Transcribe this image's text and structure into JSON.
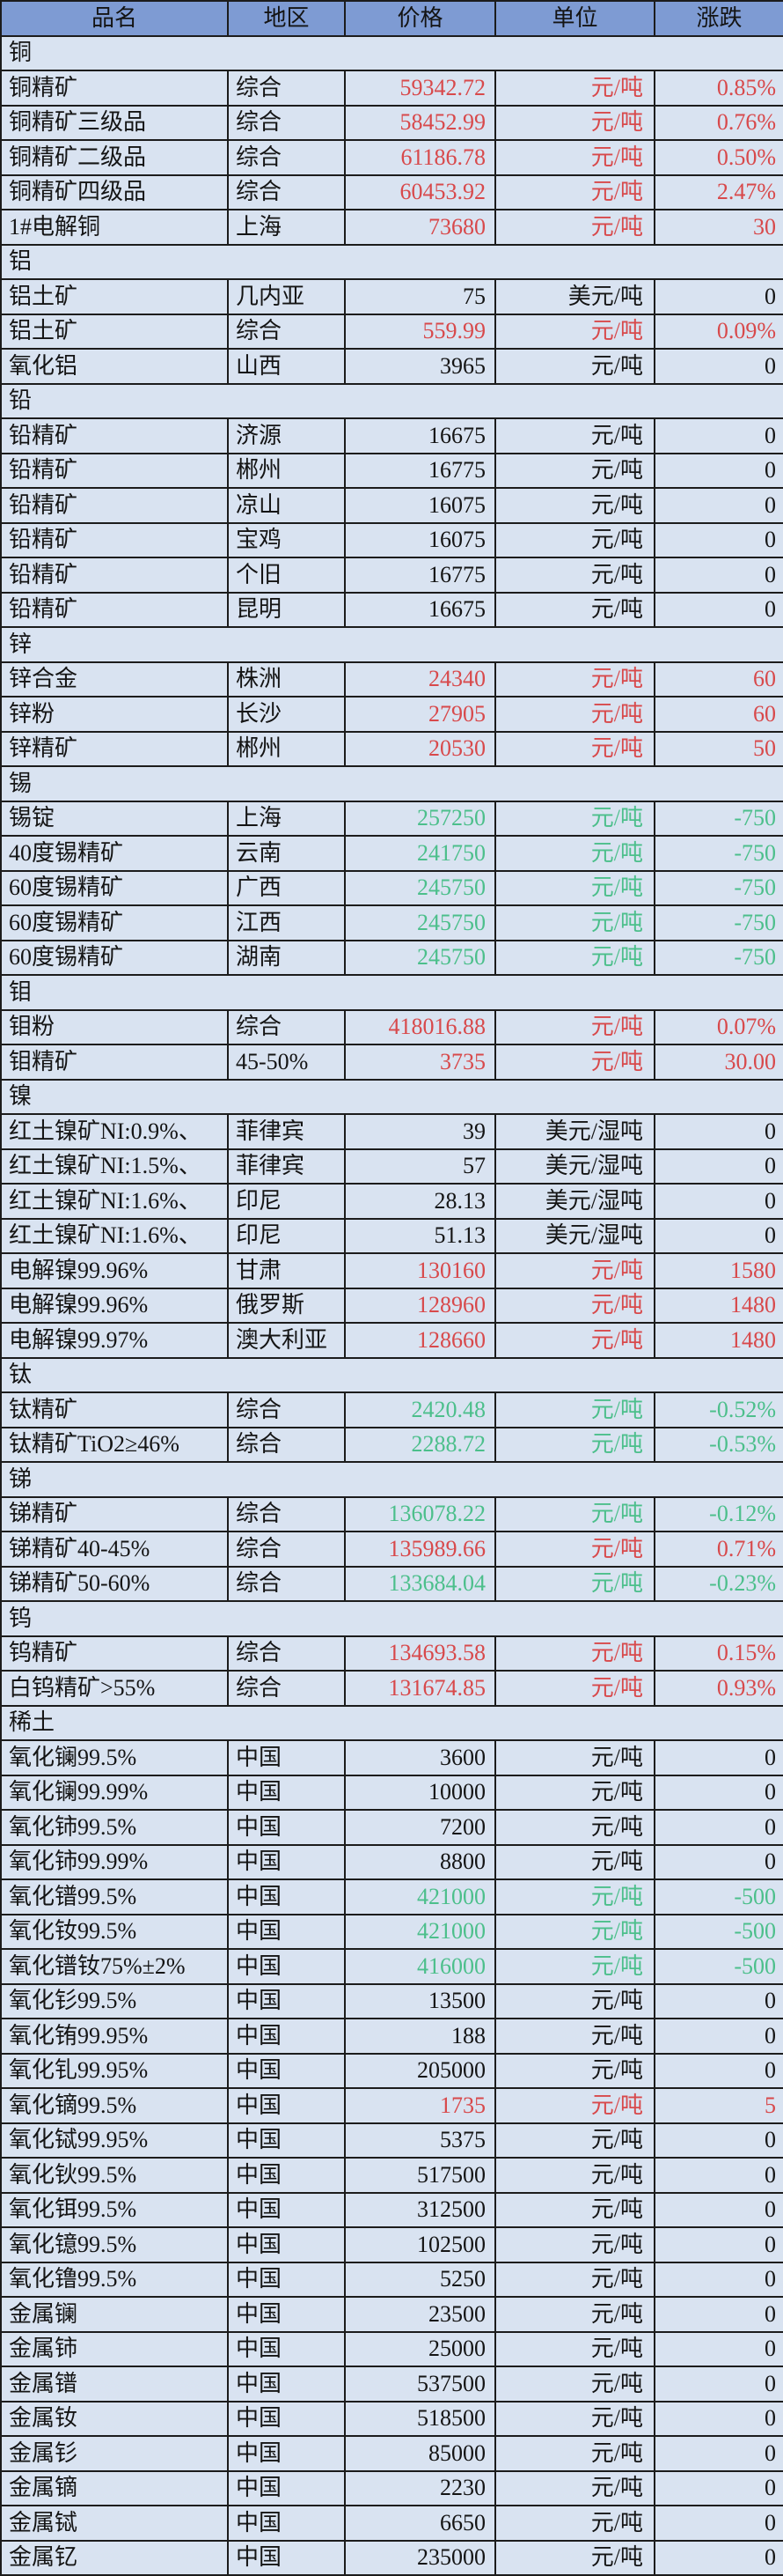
{
  "chart_data": {
    "type": "table",
    "columns": [
      "品名",
      "地区",
      "价格",
      "单位",
      "涨跌"
    ],
    "palette": {
      "header_bg": "#7e9bd3",
      "row_bg": "#d9e3f1",
      "border": "#1c1c1c",
      "up": "#d8494b",
      "down": "#4cbf8b",
      "flat": "#141414"
    },
    "sections": [
      {
        "label": "铜",
        "rows": [
          {
            "name": "铜精矿",
            "region": "综合",
            "price": "59342.72",
            "unit": "元/吨",
            "change": "0.85%",
            "trend": "up"
          },
          {
            "name": "铜精矿三级品",
            "region": "综合",
            "price": "58452.99",
            "unit": "元/吨",
            "change": "0.76%",
            "trend": "up"
          },
          {
            "name": "铜精矿二级品",
            "region": "综合",
            "price": "61186.78",
            "unit": "元/吨",
            "change": "0.50%",
            "trend": "up"
          },
          {
            "name": "铜精矿四级品",
            "region": "综合",
            "price": "60453.92",
            "unit": "元/吨",
            "change": "2.47%",
            "trend": "up"
          },
          {
            "name": "1#电解铜",
            "region": "上海",
            "price": "73680",
            "unit": "元/吨",
            "change": "30",
            "trend": "up"
          }
        ]
      },
      {
        "label": "铝",
        "rows": [
          {
            "name": "铝土矿",
            "region": "几内亚",
            "price": "75",
            "unit": "美元/吨",
            "change": "0",
            "trend": "flat"
          },
          {
            "name": "铝土矿",
            "region": "综合",
            "price": "559.99",
            "unit": "元/吨",
            "change": "0.09%",
            "trend": "up"
          },
          {
            "name": "氧化铝",
            "region": "山西",
            "price": "3965",
            "unit": "元/吨",
            "change": "0",
            "trend": "flat"
          }
        ]
      },
      {
        "label": "铅",
        "rows": [
          {
            "name": "铅精矿",
            "region": "济源",
            "price": "16675",
            "unit": "元/吨",
            "change": "0",
            "trend": "flat"
          },
          {
            "name": "铅精矿",
            "region": "郴州",
            "price": "16775",
            "unit": "元/吨",
            "change": "0",
            "trend": "flat"
          },
          {
            "name": "铅精矿",
            "region": "凉山",
            "price": "16075",
            "unit": "元/吨",
            "change": "0",
            "trend": "flat"
          },
          {
            "name": "铅精矿",
            "region": "宝鸡",
            "price": "16075",
            "unit": "元/吨",
            "change": "0",
            "trend": "flat"
          },
          {
            "name": "铅精矿",
            "region": "个旧",
            "price": "16775",
            "unit": "元/吨",
            "change": "0",
            "trend": "flat"
          },
          {
            "name": "铅精矿",
            "region": "昆明",
            "price": "16675",
            "unit": "元/吨",
            "change": "0",
            "trend": "flat"
          }
        ]
      },
      {
        "label": "锌",
        "rows": [
          {
            "name": "锌合金",
            "region": "株洲",
            "price": "24340",
            "unit": "元/吨",
            "change": "60",
            "trend": "up"
          },
          {
            "name": "锌粉",
            "region": "长沙",
            "price": "27905",
            "unit": "元/吨",
            "change": "60",
            "trend": "up"
          },
          {
            "name": "锌精矿",
            "region": "郴州",
            "price": "20530",
            "unit": "元/吨",
            "change": "50",
            "trend": "up"
          }
        ]
      },
      {
        "label": "锡",
        "rows": [
          {
            "name": "锡锭",
            "region": "上海",
            "price": "257250",
            "unit": "元/吨",
            "change": "-750",
            "trend": "down"
          },
          {
            "name": "40度锡精矿",
            "region": "云南",
            "price": "241750",
            "unit": "元/吨",
            "change": "-750",
            "trend": "down"
          },
          {
            "name": "60度锡精矿",
            "region": "广西",
            "price": "245750",
            "unit": "元/吨",
            "change": "-750",
            "trend": "down"
          },
          {
            "name": "60度锡精矿",
            "region": "江西",
            "price": "245750",
            "unit": "元/吨",
            "change": "-750",
            "trend": "down"
          },
          {
            "name": "60度锡精矿",
            "region": "湖南",
            "price": "245750",
            "unit": "元/吨",
            "change": "-750",
            "trend": "down"
          }
        ]
      },
      {
        "label": "钼",
        "rows": [
          {
            "name": "钼粉",
            "region": "综合",
            "price": "418016.88",
            "unit": "元/吨",
            "change": "0.07%",
            "trend": "up"
          },
          {
            "name": "钼精矿",
            "region": "45-50%",
            "price": "3735",
            "unit": "元/吨",
            "change": "30.00",
            "trend": "up"
          }
        ]
      },
      {
        "label": "镍",
        "rows": [
          {
            "name": "红土镍矿NI:0.9%、",
            "region": "菲律宾",
            "price": "39",
            "unit": "美元/湿吨",
            "change": "0",
            "trend": "flat"
          },
          {
            "name": "红土镍矿NI:1.5%、",
            "region": "菲律宾",
            "price": "57",
            "unit": "美元/湿吨",
            "change": "0",
            "trend": "flat"
          },
          {
            "name": "红土镍矿NI:1.6%、",
            "region": "印尼",
            "price": "28.13",
            "unit": "美元/湿吨",
            "change": "0",
            "trend": "flat"
          },
          {
            "name": "红土镍矿NI:1.6%、",
            "region": "印尼",
            "price": "51.13",
            "unit": "美元/湿吨",
            "change": "0",
            "trend": "flat"
          },
          {
            "name": "电解镍99.96%",
            "region": "甘肃",
            "price": "130160",
            "unit": "元/吨",
            "change": "1580",
            "trend": "up"
          },
          {
            "name": "电解镍99.96%",
            "region": "俄罗斯",
            "price": "128960",
            "unit": "元/吨",
            "change": "1480",
            "trend": "up"
          },
          {
            "name": "电解镍99.97%",
            "region": "澳大利亚",
            "price": "128660",
            "unit": "元/吨",
            "change": "1480",
            "trend": "up"
          }
        ]
      },
      {
        "label": "钛",
        "rows": [
          {
            "name": "钛精矿",
            "region": "综合",
            "price": "2420.48",
            "unit": "元/吨",
            "change": "-0.52%",
            "trend": "down"
          },
          {
            "name": "钛精矿TiO2≥46%",
            "region": "综合",
            "price": "2288.72",
            "unit": "元/吨",
            "change": "-0.53%",
            "trend": "down"
          }
        ]
      },
      {
        "label": "锑",
        "rows": [
          {
            "name": "锑精矿",
            "region": "综合",
            "price": "136078.22",
            "unit": "元/吨",
            "change": "-0.12%",
            "trend": "down"
          },
          {
            "name": "锑精矿40-45%",
            "region": "综合",
            "price": "135989.66",
            "unit": "元/吨",
            "change": "0.71%",
            "trend": "up"
          },
          {
            "name": "锑精矿50-60%",
            "region": "综合",
            "price": "133684.04",
            "unit": "元/吨",
            "change": "-0.23%",
            "trend": "down"
          }
        ]
      },
      {
        "label": "钨",
        "rows": [
          {
            "name": "钨精矿",
            "region": "综合",
            "price": "134693.58",
            "unit": "元/吨",
            "change": "0.15%",
            "trend": "up"
          },
          {
            "name": "白钨精矿>55%",
            "region": "综合",
            "price": "131674.85",
            "unit": "元/吨",
            "change": "0.93%",
            "trend": "up"
          }
        ]
      },
      {
        "label": "稀土",
        "rows": [
          {
            "name": "氧化镧99.5%",
            "region": "中国",
            "price": "3600",
            "unit": "元/吨",
            "change": "0",
            "trend": "flat"
          },
          {
            "name": "氧化镧99.99%",
            "region": "中国",
            "price": "10000",
            "unit": "元/吨",
            "change": "0",
            "trend": "flat"
          },
          {
            "name": "氧化铈99.5%",
            "region": "中国",
            "price": "7200",
            "unit": "元/吨",
            "change": "0",
            "trend": "flat"
          },
          {
            "name": "氧化铈99.99%",
            "region": "中国",
            "price": "8800",
            "unit": "元/吨",
            "change": "0",
            "trend": "flat"
          },
          {
            "name": "氧化镨99.5%",
            "region": "中国",
            "price": "421000",
            "unit": "元/吨",
            "change": "-500",
            "trend": "down"
          },
          {
            "name": "氧化钕99.5%",
            "region": "中国",
            "price": "421000",
            "unit": "元/吨",
            "change": "-500",
            "trend": "down"
          },
          {
            "name": "氧化镨钕75%±2%",
            "region": "中国",
            "price": "416000",
            "unit": "元/吨",
            "change": "-500",
            "trend": "down"
          },
          {
            "name": "氧化钐99.5%",
            "region": "中国",
            "price": "13500",
            "unit": "元/吨",
            "change": "0",
            "trend": "flat"
          },
          {
            "name": "氧化铕99.95%",
            "region": "中国",
            "price": "188",
            "unit": "元/吨",
            "change": "0",
            "trend": "flat"
          },
          {
            "name": "氧化钆99.95%",
            "region": "中国",
            "price": "205000",
            "unit": "元/吨",
            "change": "0",
            "trend": "flat"
          },
          {
            "name": "氧化镝99.5%",
            "region": "中国",
            "price": "1735",
            "unit": "元/吨",
            "change": "5",
            "trend": "up"
          },
          {
            "name": "氧化铽99.95%",
            "region": "中国",
            "price": "5375",
            "unit": "元/吨",
            "change": "0",
            "trend": "flat"
          },
          {
            "name": "氧化钬99.5%",
            "region": "中国",
            "price": "517500",
            "unit": "元/吨",
            "change": "0",
            "trend": "flat"
          },
          {
            "name": "氧化铒99.5%",
            "region": "中国",
            "price": "312500",
            "unit": "元/吨",
            "change": "0",
            "trend": "flat"
          },
          {
            "name": "氧化镱99.5%",
            "region": "中国",
            "price": "102500",
            "unit": "元/吨",
            "change": "0",
            "trend": "flat"
          },
          {
            "name": "氧化镥99.5%",
            "region": "中国",
            "price": "5250",
            "unit": "元/吨",
            "change": "0",
            "trend": "flat"
          },
          {
            "name": "金属镧",
            "region": "中国",
            "price": "23500",
            "unit": "元/吨",
            "change": "0",
            "trend": "flat"
          },
          {
            "name": "金属铈",
            "region": "中国",
            "price": "25000",
            "unit": "元/吨",
            "change": "0",
            "trend": "flat"
          },
          {
            "name": "金属镨",
            "region": "中国",
            "price": "537500",
            "unit": "元/吨",
            "change": "0",
            "trend": "flat"
          },
          {
            "name": "金属钕",
            "region": "中国",
            "price": "518500",
            "unit": "元/吨",
            "change": "0",
            "trend": "flat"
          },
          {
            "name": "金属钐",
            "region": "中国",
            "price": "85000",
            "unit": "元/吨",
            "change": "0",
            "trend": "flat"
          },
          {
            "name": "金属镝",
            "region": "中国",
            "price": "2230",
            "unit": "元/吨",
            "change": "0",
            "trend": "flat"
          },
          {
            "name": "金属铽",
            "region": "中国",
            "price": "6650",
            "unit": "元/吨",
            "change": "0",
            "trend": "flat"
          },
          {
            "name": "金属钇",
            "region": "中国",
            "price": "235000",
            "unit": "元/吨",
            "change": "0",
            "trend": "flat"
          }
        ]
      }
    ]
  }
}
